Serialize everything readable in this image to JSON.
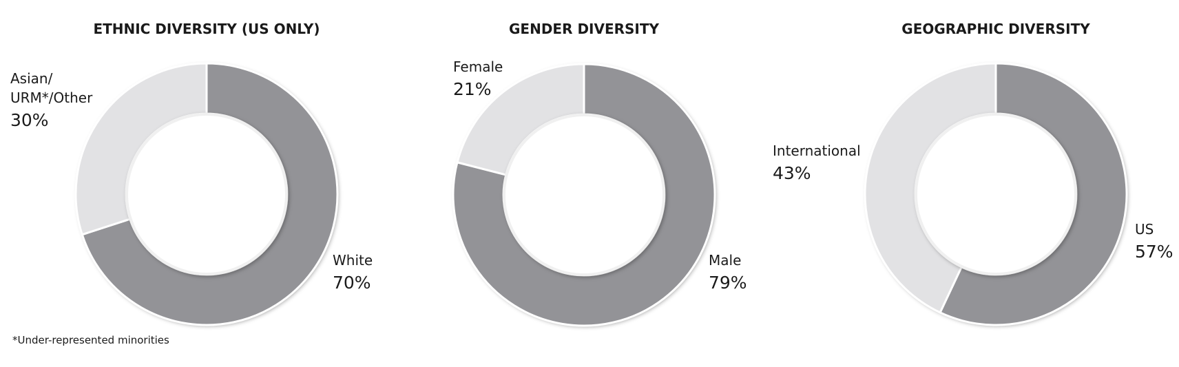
{
  "chart_data": [
    {
      "type": "pie",
      "title": "ETHNIC DIVERSITY (US ONLY)",
      "categories": [
        "White",
        "Asian/ URM*/Other"
      ],
      "values": [
        70,
        30
      ],
      "value_labels": [
        "70%",
        "30%"
      ],
      "colors": [
        "#939397",
        "#e2e2e4"
      ],
      "donut": true
    },
    {
      "type": "pie",
      "title": "GENDER DIVERSITY",
      "categories": [
        "Male",
        "Female"
      ],
      "values": [
        79,
        21
      ],
      "value_labels": [
        "79%",
        "21%"
      ],
      "colors": [
        "#939397",
        "#e2e2e4"
      ],
      "donut": true
    },
    {
      "type": "pie",
      "title": "GEOGRAPHIC DIVERSITY",
      "categories": [
        "US",
        "International"
      ],
      "values": [
        57,
        43
      ],
      "value_labels": [
        "57%",
        "43%"
      ],
      "colors": [
        "#939397",
        "#e2e2e4"
      ],
      "donut": true
    }
  ],
  "footnote": "*Under-represented minorities"
}
